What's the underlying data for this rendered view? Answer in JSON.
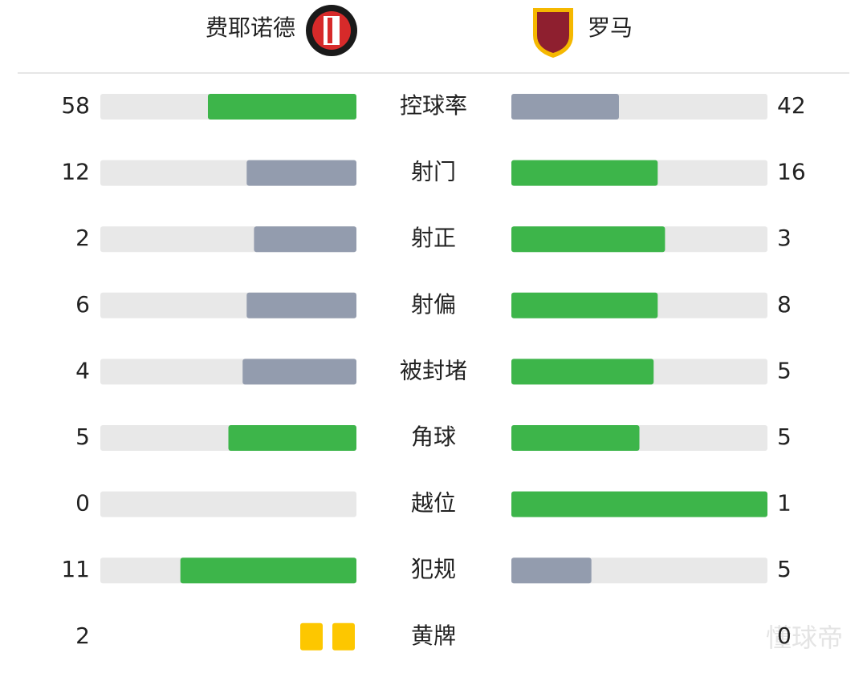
{
  "header": {
    "home": "费耶诺德",
    "away": "罗马"
  },
  "stats": [
    {
      "label": "控球率",
      "home": 58,
      "away": 42
    },
    {
      "label": "射门",
      "home": 12,
      "away": 16
    },
    {
      "label": "射正",
      "home": 2,
      "away": 3
    },
    {
      "label": "射偏",
      "home": 6,
      "away": 8
    },
    {
      "label": "被封堵",
      "home": 4,
      "away": 5
    },
    {
      "label": "角球",
      "home": 5,
      "away": 5
    },
    {
      "label": "越位",
      "home": 0,
      "away": 1
    },
    {
      "label": "犯规",
      "home": 11,
      "away": 5
    },
    {
      "label": "黄牌",
      "home": 2,
      "away": 0,
      "style": "cards"
    }
  ],
  "colors": {
    "lead": "#3db54a",
    "trail": "#939cae",
    "track": "#e8e8e8",
    "card": "#fdc700"
  },
  "watermark": "懂球帝"
}
